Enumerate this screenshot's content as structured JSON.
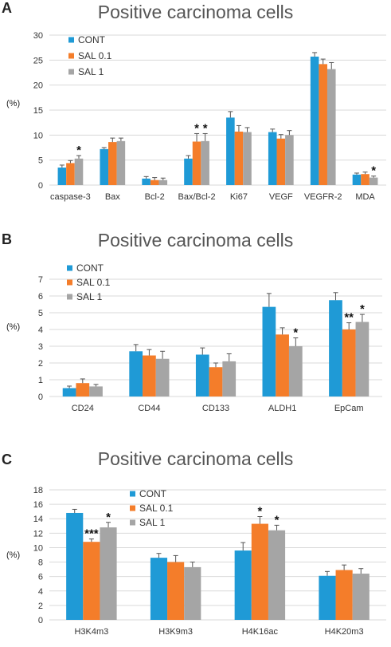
{
  "chart_data": [
    {
      "type": "bar",
      "panel": "A",
      "title": "Positive carcinoma cells",
      "ylabel": "(%)",
      "ylim": [
        0,
        30
      ],
      "yticks": [
        0,
        5,
        10,
        15,
        20,
        25,
        30
      ],
      "grid": true,
      "legend_placement": "top-left",
      "categories": [
        "caspase-3",
        "Bax",
        "Bcl-2",
        "Bax/Bcl-2",
        "Ki67",
        "VEGF",
        "VEGFR-2",
        "MDA"
      ],
      "series": [
        {
          "name": "CONT",
          "color": "#1f9ad6",
          "values": [
            3.5,
            7.2,
            1.3,
            5.3,
            13.5,
            10.6,
            25.7,
            2.1
          ],
          "errors": [
            0.5,
            0.3,
            0.4,
            0.6,
            1.2,
            0.6,
            0.8,
            0.3
          ]
        },
        {
          "name": "SAL 0.1",
          "color": "#f47d2a",
          "values": [
            4.4,
            8.6,
            1.0,
            8.7,
            10.7,
            9.3,
            24.2,
            2.2
          ],
          "errors": [
            0.5,
            0.8,
            0.5,
            1.6,
            1.2,
            0.8,
            1.0,
            0.4
          ]
        },
        {
          "name": "SAL 1",
          "color": "#a5a5a5",
          "values": [
            5.3,
            8.8,
            1.0,
            8.8,
            10.6,
            10.0,
            23.2,
            1.5
          ],
          "errors": [
            0.6,
            0.6,
            0.4,
            1.5,
            0.9,
            0.9,
            1.3,
            0.3
          ]
        }
      ],
      "annotations": [
        {
          "category": "caspase-3",
          "series": "SAL 1",
          "text": "*"
        },
        {
          "category": "Bax/Bcl-2",
          "series": "SAL 0.1",
          "text": "*"
        },
        {
          "category": "Bax/Bcl-2",
          "series": "SAL 1",
          "text": "*"
        },
        {
          "category": "MDA",
          "series": "SAL 1",
          "text": "*"
        }
      ]
    },
    {
      "type": "bar",
      "panel": "B",
      "title": "Positive carcinoma cells",
      "ylabel": "(%)",
      "ylim": [
        0,
        7
      ],
      "yticks": [
        0,
        1,
        2,
        3,
        4,
        5,
        6,
        7
      ],
      "grid": true,
      "legend_placement": "top-left",
      "categories": [
        "CD24",
        "CD44",
        "CD133",
        "ALDH1",
        "EpCam"
      ],
      "series": [
        {
          "name": "CONT",
          "color": "#1f9ad6",
          "values": [
            0.5,
            2.7,
            2.5,
            5.35,
            5.75
          ],
          "errors": [
            0.12,
            0.4,
            0.4,
            0.8,
            0.45
          ]
        },
        {
          "name": "SAL 0.1",
          "color": "#f47d2a",
          "values": [
            0.8,
            2.45,
            1.75,
            3.7,
            4.0
          ],
          "errors": [
            0.25,
            0.35,
            0.25,
            0.4,
            0.4
          ]
        },
        {
          "name": "SAL 1",
          "color": "#a5a5a5",
          "values": [
            0.6,
            2.25,
            2.1,
            3.0,
            4.45
          ],
          "errors": [
            0.12,
            0.45,
            0.45,
            0.5,
            0.45
          ]
        }
      ],
      "annotations": [
        {
          "category": "ALDH1",
          "series": "SAL 1",
          "text": "*"
        },
        {
          "category": "EpCam",
          "series": "SAL 0.1",
          "text": "**"
        },
        {
          "category": "EpCam",
          "series": "SAL 1",
          "text": "*"
        }
      ]
    },
    {
      "type": "bar",
      "panel": "C",
      "title": "Positive carcinoma cells",
      "ylabel": "(%)",
      "ylim": [
        0,
        18
      ],
      "yticks": [
        0,
        2,
        4,
        6,
        8,
        10,
        12,
        14,
        16,
        18
      ],
      "grid": true,
      "legend_placement": "top-center",
      "categories": [
        "H3K4m3",
        "H3K9m3",
        "H4K16ac",
        "H4K20m3"
      ],
      "series": [
        {
          "name": "CONT",
          "color": "#1f9ad6",
          "values": [
            14.8,
            8.6,
            9.6,
            6.1
          ],
          "errors": [
            0.5,
            0.6,
            1.1,
            0.6
          ]
        },
        {
          "name": "SAL 0.1",
          "color": "#f47d2a",
          "values": [
            10.8,
            8.0,
            13.3,
            6.9
          ],
          "errors": [
            0.4,
            0.9,
            1.0,
            0.7
          ]
        },
        {
          "name": "SAL 1",
          "color": "#a5a5a5",
          "values": [
            12.8,
            7.3,
            12.4,
            6.4
          ],
          "errors": [
            0.7,
            0.7,
            0.7,
            0.7
          ]
        }
      ],
      "annotations": [
        {
          "category": "H3K4m3",
          "series": "SAL 0.1",
          "text": "***"
        },
        {
          "category": "H3K4m3",
          "series": "SAL 1",
          "text": "*"
        },
        {
          "category": "H4K16ac",
          "series": "SAL 0.1",
          "text": "*"
        },
        {
          "category": "H4K16ac",
          "series": "SAL 1",
          "text": "*"
        }
      ]
    }
  ]
}
